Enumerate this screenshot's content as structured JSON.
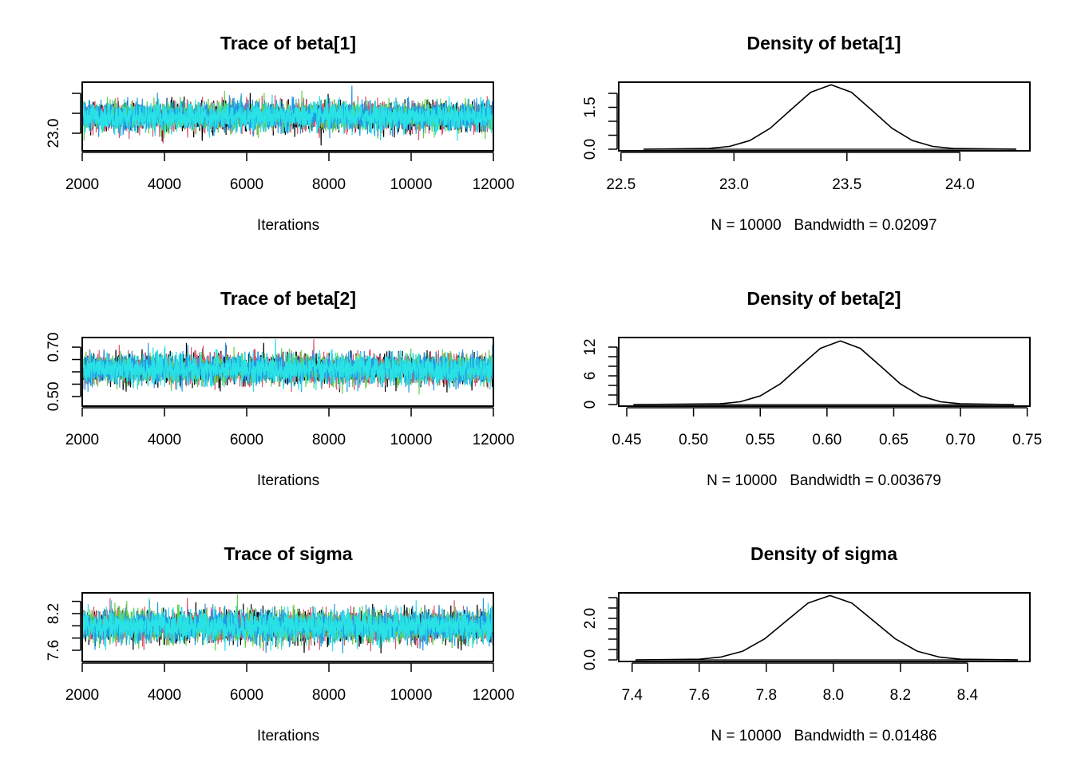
{
  "chain_colors": [
    "#000000",
    "#DF536B",
    "#61D04F",
    "#2297E6",
    "#28E2E5"
  ],
  "chart_data": [
    {
      "type": "line",
      "title": "Trace of beta[1]",
      "xlabel": "Iterations",
      "xlim": [
        2000,
        12000
      ],
      "xticks": [
        2000,
        4000,
        6000,
        8000,
        10000,
        12000
      ],
      "xtick_labels": [
        "2000",
        "4000",
        "6000",
        "8000",
        "10000",
        "12000"
      ],
      "ylim": [
        22.56,
        24.28
      ],
      "yticks": [
        23.0,
        23.5,
        24.0
      ],
      "ytick_labels": [
        "23.0",
        "",
        ""
      ],
      "chains": {
        "count": 5,
        "mean": 23.42,
        "sd": 0.18
      }
    },
    {
      "type": "line",
      "title": "Density of beta[1]",
      "xlabel": "N = 10000   Bandwidth = 0.02097",
      "xlim": [
        22.49,
        24.31
      ],
      "xticks": [
        22.5,
        23.0,
        23.5,
        24.0
      ],
      "xtick_labels": [
        "22.5",
        "23.0",
        "23.5",
        "24.0"
      ],
      "ylim": [
        -0.057,
        2.4
      ],
      "yticks": [
        0,
        0.5,
        1.0,
        1.5,
        2.0
      ],
      "ytick_labels": [
        "0.0",
        "",
        "",
        "1.5",
        ""
      ],
      "x": [
        22.6,
        22.89,
        22.98,
        23.07,
        23.16,
        23.25,
        23.34,
        23.43,
        23.52,
        23.61,
        23.7,
        23.79,
        23.88,
        23.97,
        24.25
      ],
      "y": [
        0,
        0.03,
        0.1,
        0.31,
        0.75,
        1.4,
        2.04,
        2.31,
        2.04,
        1.4,
        0.75,
        0.31,
        0.1,
        0.03,
        0
      ]
    },
    {
      "type": "line",
      "title": "Trace of beta[2]",
      "xlabel": "Iterations",
      "xlim": [
        2000,
        12000
      ],
      "xticks": [
        2000,
        4000,
        6000,
        8000,
        10000,
        12000
      ],
      "xtick_labels": [
        "2000",
        "4000",
        "6000",
        "8000",
        "10000",
        "12000"
      ],
      "ylim": [
        0.461,
        0.739
      ],
      "yticks": [
        0.5,
        0.55,
        0.6,
        0.65,
        0.7
      ],
      "ytick_labels": [
        "0.50",
        "",
        "",
        "",
        "0.70"
      ],
      "chains": {
        "count": 5,
        "mean": 0.61,
        "sd": 0.03
      }
    },
    {
      "type": "line",
      "title": "Density of beta[2]",
      "xlabel": "N = 10000   Bandwidth = 0.003679",
      "xlim": [
        0.444,
        0.752
      ],
      "xticks": [
        0.45,
        0.5,
        0.55,
        0.6,
        0.65,
        0.7,
        0.75
      ],
      "xtick_labels": [
        "0.45",
        "0.50",
        "0.55",
        "0.60",
        "0.65",
        "0.70",
        "0.75"
      ],
      "ylim": [
        -0.33,
        14
      ],
      "yticks": [
        0,
        2,
        4,
        6,
        8,
        10,
        12
      ],
      "ytick_labels": [
        "0",
        "",
        "",
        "6",
        "",
        "",
        "12"
      ],
      "x": [
        0.455,
        0.52,
        0.535,
        0.55,
        0.565,
        0.58,
        0.595,
        0.61,
        0.625,
        0.64,
        0.655,
        0.67,
        0.685,
        0.7,
        0.74
      ],
      "y": [
        0,
        0.15,
        0.58,
        1.8,
        4.32,
        8.07,
        11.74,
        13.3,
        11.74,
        8.07,
        4.32,
        1.8,
        0.58,
        0.15,
        0
      ]
    },
    {
      "type": "line",
      "title": "Trace of sigma",
      "xlabel": "Iterations",
      "xlim": [
        2000,
        12000
      ],
      "xticks": [
        2000,
        4000,
        6000,
        8000,
        10000,
        12000
      ],
      "xtick_labels": [
        "2000",
        "4000",
        "6000",
        "8000",
        "10000",
        "12000"
      ],
      "ylim": [
        7.417,
        8.539
      ],
      "yticks": [
        7.6,
        7.8,
        8.0,
        8.2,
        8.4
      ],
      "ytick_labels": [
        "7.6",
        "",
        "",
        "8.2",
        ""
      ],
      "chains": {
        "count": 5,
        "mean": 7.99,
        "sd": 0.13
      }
    },
    {
      "type": "line",
      "title": "Density of sigma",
      "xlabel": "N = 10000   Bandwidth = 0.01486",
      "xlim": [
        7.36,
        8.586
      ],
      "xticks": [
        7.4,
        7.6,
        7.8,
        8.0,
        8.2,
        8.4
      ],
      "xtick_labels": [
        "7.4",
        "7.6",
        "7.8",
        "8.0",
        "8.2",
        "8.4"
      ],
      "ylim": [
        -0.077,
        3.23
      ],
      "yticks": [
        0,
        0.5,
        1.0,
        1.5,
        2.0,
        2.5,
        3.0
      ],
      "ytick_labels": [
        "0.0",
        "",
        "",
        "",
        "2.0",
        "",
        ""
      ],
      "x": [
        7.41,
        7.6,
        7.665,
        7.73,
        7.795,
        7.86,
        7.925,
        7.99,
        8.055,
        8.12,
        8.185,
        8.25,
        8.315,
        8.38,
        8.55
      ],
      "y": [
        0,
        0.03,
        0.14,
        0.42,
        1.01,
        1.88,
        2.74,
        3.1,
        2.74,
        1.88,
        1.01,
        0.42,
        0.14,
        0.03,
        0
      ]
    }
  ]
}
